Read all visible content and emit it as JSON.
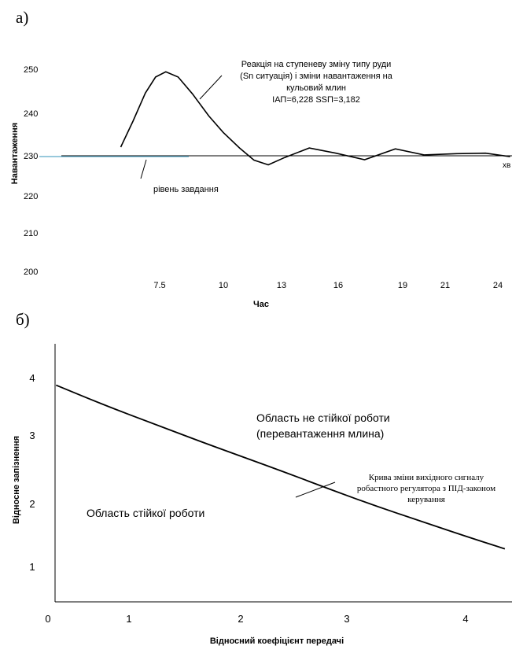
{
  "panel_labels": {
    "a": "а)",
    "b": "б)"
  },
  "chart_data": [
    {
      "type": "line",
      "xlabel": "Час",
      "ylabel": "Навантаження",
      "x_unit": "хв",
      "yticks": [
        250,
        240,
        230,
        220,
        210,
        200
      ],
      "xticks": [
        "7.5",
        "10",
        "13",
        "16",
        "19",
        "21",
        "24"
      ],
      "series": [
        {
          "values": [
            [
              5.6,
              232
            ],
            [
              6.2,
              238
            ],
            [
              6.8,
              244.5
            ],
            [
              7.3,
              248.2
            ],
            [
              7.8,
              249.4
            ],
            [
              8.4,
              248.2
            ],
            [
              9.1,
              244.3
            ],
            [
              9.9,
              239.2
            ],
            [
              10.6,
              235.4
            ],
            [
              11.4,
              231.8
            ],
            [
              12.1,
              229
            ],
            [
              12.8,
              227.9
            ],
            [
              13.6,
              229.6
            ],
            [
              14.8,
              231.8
            ],
            [
              16.1,
              230.6
            ],
            [
              17.5,
              229.1
            ],
            [
              19.0,
              231.6
            ],
            [
              20.4,
              230.2
            ],
            [
              22.0,
              230.5
            ],
            [
              23.4,
              230.6
            ],
            [
              24.6,
              229.8
            ]
          ]
        }
      ],
      "setpoint": 230,
      "annotations": {
        "curve": [
          "Реакція на ступеневу зміну типу руди",
          "(Sn ситуація) і зміни навантаження на",
          "кульовий млин",
          "ІАП=6,228   SSП=3,182"
        ],
        "setpoint": "рівень завдання"
      }
    },
    {
      "type": "line",
      "xlabel": "Відносний коефіцієнт передачі",
      "ylabel": "Відносне запізнення",
      "origin_label": "0",
      "xticks": [
        "1",
        "2",
        "3",
        "4"
      ],
      "yticks": [
        "4",
        "3",
        "2",
        "1"
      ],
      "series": [
        {
          "values": [
            [
              0.35,
              3.88
            ],
            [
              0.8,
              3.55
            ],
            [
              1.2,
              3.28
            ],
            [
              1.6,
              3.01
            ],
            [
              2.0,
              2.75
            ],
            [
              2.4,
              2.49
            ],
            [
              2.8,
              2.22
            ],
            [
              3.2,
              1.96
            ],
            [
              3.6,
              1.72
            ],
            [
              4.0,
              1.48
            ],
            [
              4.35,
              1.28
            ]
          ]
        }
      ],
      "annotations": {
        "unstable": [
          "Область не стійкої роботи",
          "(перевантаження млина)"
        ],
        "stable": "Область  стійкої роботи",
        "curve": [
          "Крива зміни вихідного сигналу",
          "робастного регулятора з ПІД-законом",
          "керування"
        ]
      }
    }
  ],
  "colors": {
    "axis": "#000000",
    "setpoint_line": "#5aa9c8",
    "curve": "#000000"
  }
}
